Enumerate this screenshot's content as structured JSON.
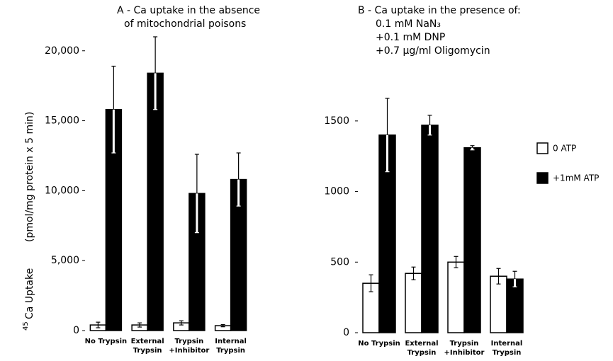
{
  "chart_data": [
    {
      "type": "bar",
      "title": [
        "A - Ca uptake in the absence",
        "of mitochondrial poisons"
      ],
      "y_label_isotope": "45",
      "y_label": "Ca Uptake",
      "y_label_units": "(pmol/mg protein x 5 min)",
      "categories": [
        [
          "No Trypsin"
        ],
        [
          "External",
          "Trypsin"
        ],
        [
          "Trypsin",
          "+Inhibitor"
        ],
        [
          "Internal",
          "Trypsin"
        ]
      ],
      "series": [
        {
          "color": "#ffffff",
          "values": [
            400,
            400,
            550,
            350
          ],
          "errors": [
            200,
            150,
            150,
            80
          ]
        },
        {
          "color": "#000000",
          "values": [
            15800,
            18400,
            9800,
            10800
          ],
          "errors": [
            3100,
            2600,
            2800,
            1900
          ]
        }
      ],
      "ylim": [
        0,
        21000
      ],
      "yticks": [
        0,
        {
          "value": 5000,
          "label": "5,000"
        },
        {
          "value": 10000,
          "label": "10,000"
        },
        {
          "value": 15000,
          "label": "15,000"
        },
        {
          "value": 20000,
          "label": "20,000"
        }
      ]
    },
    {
      "type": "bar",
      "title": [
        "B - Ca uptake in the presence of:",
        "0.1 mM NaN₃",
        "+0.1 mM DNP",
        "+0.7 μg/ml Oligomycin"
      ],
      "categories": [
        [
          "No Trypsin"
        ],
        [
          "External",
          "Trypsin"
        ],
        [
          "Trypsin",
          "+Inhibitor"
        ],
        [
          "Internal",
          "Trypsin"
        ]
      ],
      "series": [
        {
          "name": "0 ATP",
          "color": "#ffffff",
          "values": [
            350,
            420,
            500,
            400
          ],
          "errors": [
            60,
            45,
            40,
            55
          ]
        },
        {
          "name": "+1mM ATP",
          "color": "#000000",
          "values": [
            1400,
            1470,
            1310,
            380
          ],
          "errors": [
            260,
            70,
            15,
            55
          ]
        }
      ],
      "ylim": [
        0,
        1750
      ],
      "yticks": [
        0,
        500,
        1000,
        1500
      ],
      "legend": "right"
    }
  ]
}
